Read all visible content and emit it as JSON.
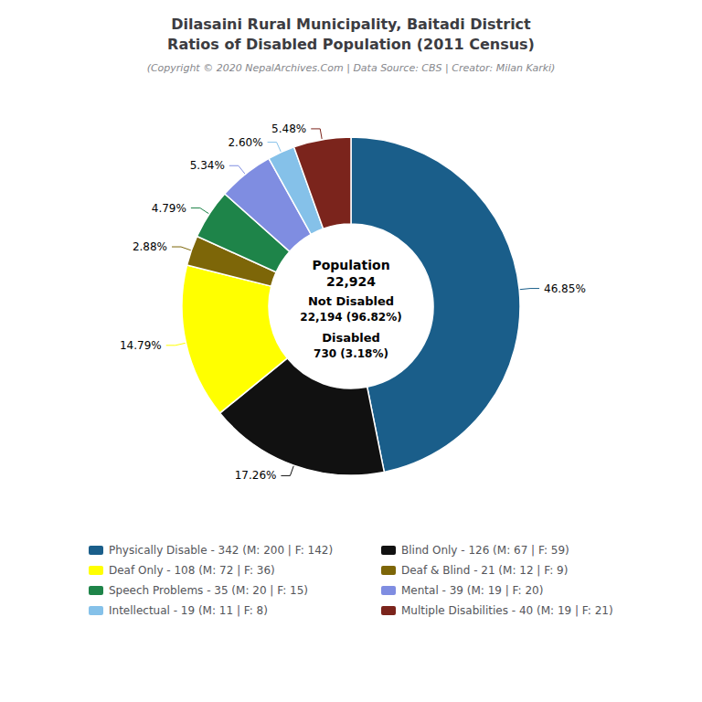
{
  "chart_data": {
    "type": "pie",
    "title": "Dilasaini Rural Municipality, Baitadi District\nRatios of Disabled Population (2011 Census)",
    "subtitle": "(Copyright © 2020 NepalArchives.Com | Data Source: CBS | Creator: Milan Karki)",
    "annotations": [
      "Population",
      "22,924",
      "Not Disabled",
      "22,194 (96.82%)",
      "Disabled",
      "730 (3.18%)"
    ],
    "categories": [
      "Physically Disable - 342 (M: 200 | F: 142)",
      "Blind Only - 126 (M: 67 | F: 59)",
      "Deaf Only - 108 (M: 72 | F: 36)",
      "Deaf & Blind - 21 (M: 12 | F: 9)",
      "Speech Problems - 35 (M: 20 | F: 15)",
      "Mental - 39 (M: 19 | F: 20)",
      "Intellectual - 19 (M: 11 | F: 8)",
      "Multiple Disabilities - 40 (M: 19 | F: 21)"
    ],
    "values": [
      46.85,
      17.26,
      14.79,
      2.88,
      4.79,
      5.34,
      2.6,
      5.48
    ],
    "value_labels": [
      "46.85%",
      "17.26%",
      "14.79%",
      "2.88%",
      "4.79%",
      "5.34%",
      "2.60%",
      "5.48%"
    ],
    "colors": [
      "#1a5e8a",
      "#111111",
      "#ffff00",
      "#7d6608",
      "#1e8449",
      "#7f8de1",
      "#85c1e9",
      "#7b241c"
    ],
    "data_labels": true,
    "legend": "bottom"
  }
}
